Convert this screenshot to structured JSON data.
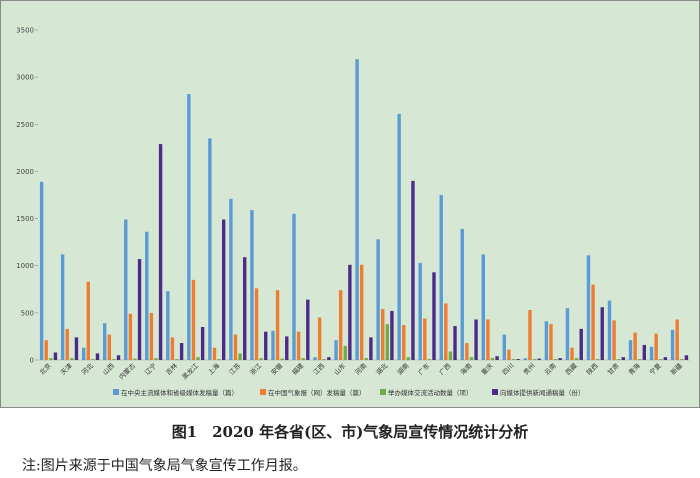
{
  "chart_data": {
    "type": "bar",
    "categories": [
      "北京",
      "天津",
      "河北",
      "山西",
      "内蒙古",
      "辽宁",
      "吉林",
      "黑龙江",
      "上海",
      "江苏",
      "浙江",
      "安徽",
      "福建",
      "江西",
      "山东",
      "河南",
      "湖北",
      "湖南",
      "广东",
      "广西",
      "海南",
      "重庆",
      "四川",
      "贵州",
      "云南",
      "西藏",
      "陕西",
      "甘肃",
      "青海",
      "宁夏",
      "新疆"
    ],
    "series": [
      {
        "name": "在中央主流媒体和省级媒体发稿量（篇）",
        "color": "#5b9bd5",
        "values": [
          1890,
          1120,
          130,
          390,
          1490,
          1360,
          730,
          2820,
          2350,
          1710,
          1590,
          310,
          1550,
          30,
          210,
          3190,
          1280,
          2610,
          1030,
          1750,
          1390,
          1120,
          270,
          20,
          410,
          550,
          1110,
          630,
          210,
          140,
          320
        ]
      },
      {
        "name": "在中国气象报（网）发稿量（篇）",
        "color": "#ed7d31",
        "values": [
          210,
          330,
          830,
          270,
          490,
          500,
          240,
          850,
          130,
          270,
          760,
          740,
          300,
          450,
          740,
          1010,
          540,
          370,
          440,
          600,
          180,
          430,
          110,
          530,
          380,
          130,
          800,
          420,
          290,
          280,
          430
        ]
      },
      {
        "name": "举办媒体交流活动数量（项）",
        "color": "#70ad47",
        "values": [
          20,
          20,
          10,
          10,
          15,
          20,
          10,
          30,
          10,
          70,
          20,
          15,
          20,
          10,
          150,
          20,
          380,
          30,
          10,
          90,
          30,
          20,
          10,
          10,
          10,
          20,
          10,
          10,
          10,
          10,
          10
        ]
      },
      {
        "name": "向媒体提供新闻通稿量（份）",
        "color": "#4b2a8a",
        "values": [
          80,
          240,
          70,
          50,
          1070,
          2290,
          180,
          350,
          1490,
          1090,
          300,
          250,
          640,
          30,
          1010,
          240,
          520,
          1900,
          930,
          360,
          430,
          40,
          10,
          15,
          20,
          330,
          560,
          30,
          160,
          30,
          50
        ]
      }
    ],
    "yticks": [
      0,
      500,
      1000,
      1500,
      2000,
      2500,
      3000,
      3500
    ],
    "ylim": [
      0,
      3500
    ]
  },
  "caption": "图1　2020 年各省(区、市)气象局宣传情况统计分析",
  "note": "注:图片来源于中国气象局气象宣传工作月报。",
  "colors": {
    "plot_bg": "#d6e8d4",
    "frame": "#8a8a8a"
  }
}
